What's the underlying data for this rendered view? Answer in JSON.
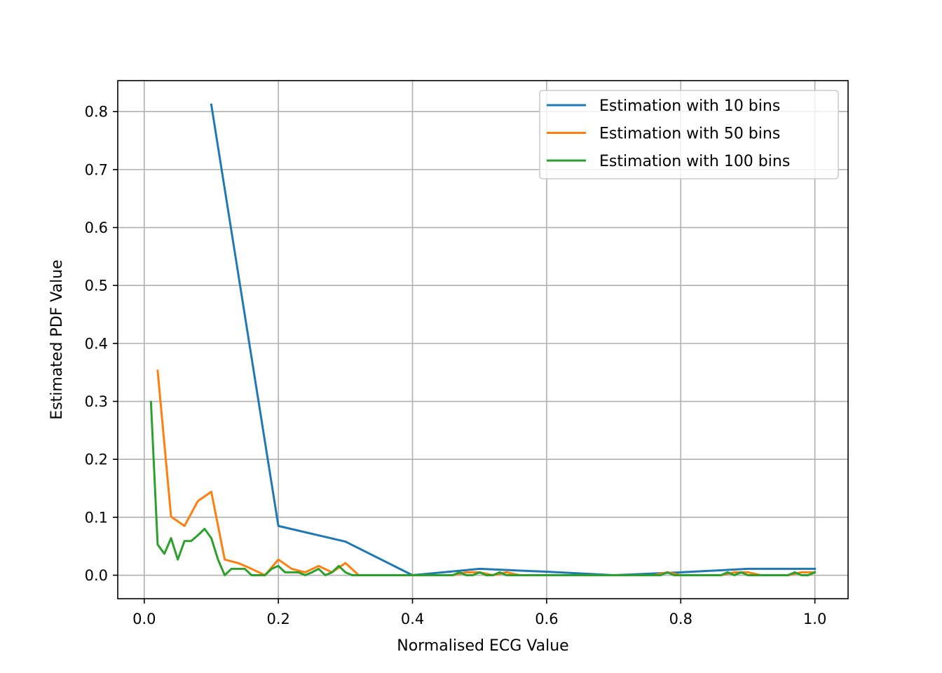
{
  "chart_data": {
    "type": "line",
    "title": "",
    "xlabel": "Normalised ECG Value",
    "ylabel": "Estimated PDF Value",
    "xlim": [
      -0.0395,
      1.0495
    ],
    "ylim": [
      -0.0405,
      0.8535
    ],
    "grid": true,
    "legend_position": "top-right",
    "xticks": [
      0.0,
      0.2,
      0.4,
      0.6,
      0.8,
      1.0
    ],
    "xtick_labels": [
      "0.0",
      "0.2",
      "0.4",
      "0.6",
      "0.8",
      "1.0"
    ],
    "yticks": [
      0.0,
      0.1,
      0.2,
      0.3,
      0.4,
      0.5,
      0.6,
      0.7,
      0.8
    ],
    "ytick_labels": [
      "0.0",
      "0.1",
      "0.2",
      "0.3",
      "0.4",
      "0.5",
      "0.6",
      "0.7",
      "0.8"
    ],
    "series": [
      {
        "name": "Estimation with 10 bins",
        "color": "#1f77b4",
        "x": [
          0.1,
          0.2,
          0.3,
          0.4,
          0.5,
          0.6,
          0.7,
          0.8,
          0.9,
          1.0
        ],
        "y": [
          0.812,
          0.085,
          0.058,
          0.0,
          0.011,
          0.006,
          0.0,
          0.005,
          0.011,
          0.011
        ]
      },
      {
        "name": "Estimation with 50 bins",
        "color": "#ff7f0e",
        "x": [
          0.02,
          0.04,
          0.06,
          0.08,
          0.1,
          0.12,
          0.14,
          0.16,
          0.18,
          0.2,
          0.22,
          0.24,
          0.26,
          0.28,
          0.3,
          0.32,
          0.34,
          0.36,
          0.38,
          0.4,
          0.42,
          0.44,
          0.46,
          0.48,
          0.5,
          0.52,
          0.54,
          0.56,
          0.58,
          0.6,
          0.62,
          0.64,
          0.66,
          0.68,
          0.7,
          0.72,
          0.74,
          0.76,
          0.78,
          0.8,
          0.82,
          0.84,
          0.86,
          0.88,
          0.9,
          0.92,
          0.94,
          0.96,
          0.98,
          1.0
        ],
        "y": [
          0.353,
          0.101,
          0.085,
          0.128,
          0.144,
          0.027,
          0.021,
          0.011,
          0.0,
          0.027,
          0.011,
          0.005,
          0.016,
          0.005,
          0.021,
          0.0,
          0.0,
          0.0,
          0.0,
          0.0,
          0.0,
          0.0,
          0.0,
          0.005,
          0.005,
          0.0,
          0.005,
          0.0,
          0.0,
          0.0,
          0.0,
          0.0,
          0.0,
          0.0,
          0.0,
          0.0,
          0.0,
          0.0,
          0.005,
          0.0,
          0.0,
          0.0,
          0.0,
          0.005,
          0.005,
          0.0,
          0.0,
          0.0,
          0.005,
          0.005
        ]
      },
      {
        "name": "Estimation with 100 bins",
        "color": "#2ca02c",
        "x": [
          0.01,
          0.02,
          0.03,
          0.04,
          0.05,
          0.06,
          0.07,
          0.08,
          0.09,
          0.1,
          0.11,
          0.12,
          0.13,
          0.14,
          0.15,
          0.16,
          0.17,
          0.18,
          0.19,
          0.2,
          0.21,
          0.22,
          0.23,
          0.24,
          0.25,
          0.26,
          0.27,
          0.28,
          0.29,
          0.3,
          0.31,
          0.32,
          0.33,
          0.34,
          0.35,
          0.36,
          0.37,
          0.38,
          0.39,
          0.4,
          0.41,
          0.42,
          0.43,
          0.44,
          0.45,
          0.46,
          0.47,
          0.48,
          0.49,
          0.5,
          0.51,
          0.52,
          0.53,
          0.54,
          0.55,
          0.56,
          0.57,
          0.58,
          0.59,
          0.6,
          0.61,
          0.62,
          0.63,
          0.64,
          0.65,
          0.66,
          0.67,
          0.68,
          0.69,
          0.7,
          0.71,
          0.72,
          0.73,
          0.74,
          0.75,
          0.76,
          0.77,
          0.78,
          0.79,
          0.8,
          0.81,
          0.82,
          0.83,
          0.84,
          0.85,
          0.86,
          0.87,
          0.88,
          0.89,
          0.9,
          0.91,
          0.92,
          0.93,
          0.94,
          0.95,
          0.96,
          0.97,
          0.98,
          0.99,
          1.0
        ],
        "y": [
          0.299,
          0.053,
          0.037,
          0.064,
          0.027,
          0.059,
          0.059,
          0.069,
          0.08,
          0.064,
          0.027,
          0.0,
          0.011,
          0.011,
          0.011,
          0.0,
          0.0,
          0.0,
          0.011,
          0.016,
          0.005,
          0.005,
          0.005,
          0.0,
          0.005,
          0.011,
          0.0,
          0.005,
          0.016,
          0.005,
          0.0,
          0.0,
          0.0,
          0.0,
          0.0,
          0.0,
          0.0,
          0.0,
          0.0,
          0.0,
          0.0,
          0.0,
          0.0,
          0.0,
          0.0,
          0.0,
          0.005,
          0.0,
          0.0,
          0.005,
          0.0,
          0.0,
          0.005,
          0.0,
          0.0,
          0.0,
          0.0,
          0.0,
          0.0,
          0.0,
          0.0,
          0.0,
          0.0,
          0.0,
          0.0,
          0.0,
          0.0,
          0.0,
          0.0,
          0.0,
          0.0,
          0.0,
          0.0,
          0.0,
          0.0,
          0.0,
          0.0,
          0.005,
          0.0,
          0.0,
          0.0,
          0.0,
          0.0,
          0.0,
          0.0,
          0.0,
          0.005,
          0.0,
          0.005,
          0.0,
          0.0,
          0.0,
          0.0,
          0.0,
          0.0,
          0.0,
          0.005,
          0.0,
          0.0,
          0.005
        ]
      }
    ]
  }
}
